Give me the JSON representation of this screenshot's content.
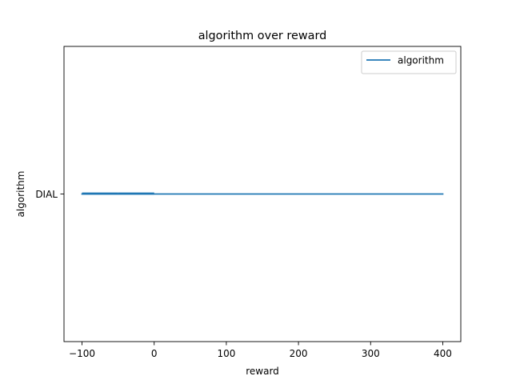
{
  "chart_data": {
    "type": "line",
    "title": "algorithm over reward",
    "xlabel": "reward",
    "ylabel": "algorithm",
    "xlim": [
      -125,
      425
    ],
    "x_ticks": [
      -100,
      0,
      100,
      200,
      300,
      400
    ],
    "x_tick_labels": [
      "−100",
      "0",
      "100",
      "200",
      "300",
      "400"
    ],
    "y_categories": [
      "DIAL"
    ],
    "series": [
      {
        "name": "algorithm",
        "color": "#1f77b4",
        "x": [
          -100,
          -50,
          0,
          150,
          400
        ],
        "y": [
          "DIAL",
          "DIAL",
          "DIAL",
          "DIAL",
          "DIAL"
        ]
      }
    ],
    "legend_position": "top-right",
    "grid": false
  }
}
